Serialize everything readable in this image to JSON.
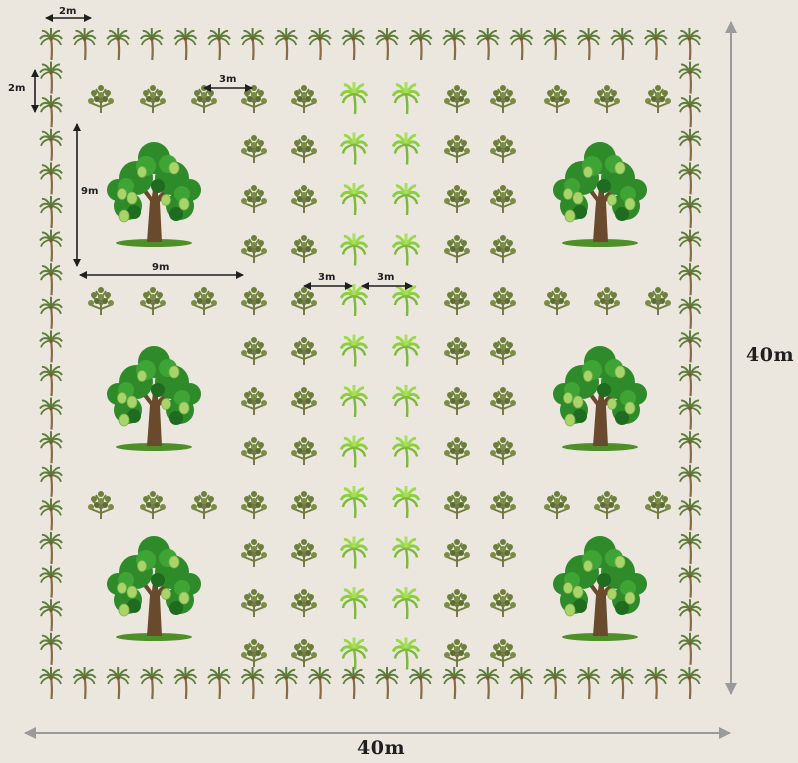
{
  "labels": {
    "total_width": "40m",
    "total_height": "40m",
    "border_spacing_horizontal": "2m",
    "border_spacing_vertical": "2m",
    "shrub_spacing": "3m",
    "tree_block_height": "9m",
    "tree_block_width": "9m",
    "palm_spacing_left": "3m",
    "palm_spacing_right": "3m"
  },
  "colors": {
    "background": "#ebe7df",
    "arrow": "#1f1f1f",
    "dimension_arrow": "#9a9a9a",
    "border_palm_frond": "#5f7d3a",
    "border_palm_trunk": "#8a6a45",
    "shrub": "#6e7f3c",
    "green_palm": "#8ccf3e",
    "tree_canopy": "#2f8a2a",
    "tree_fruit": "#a8d46a",
    "tree_trunk": "#6a4a2c"
  },
  "icons": {
    "border_plant": "coconut-palm-icon",
    "row_plant": "shrub-icon",
    "center_plant": "green-palm-icon",
    "large_plant": "fruit-tree-icon"
  }
}
